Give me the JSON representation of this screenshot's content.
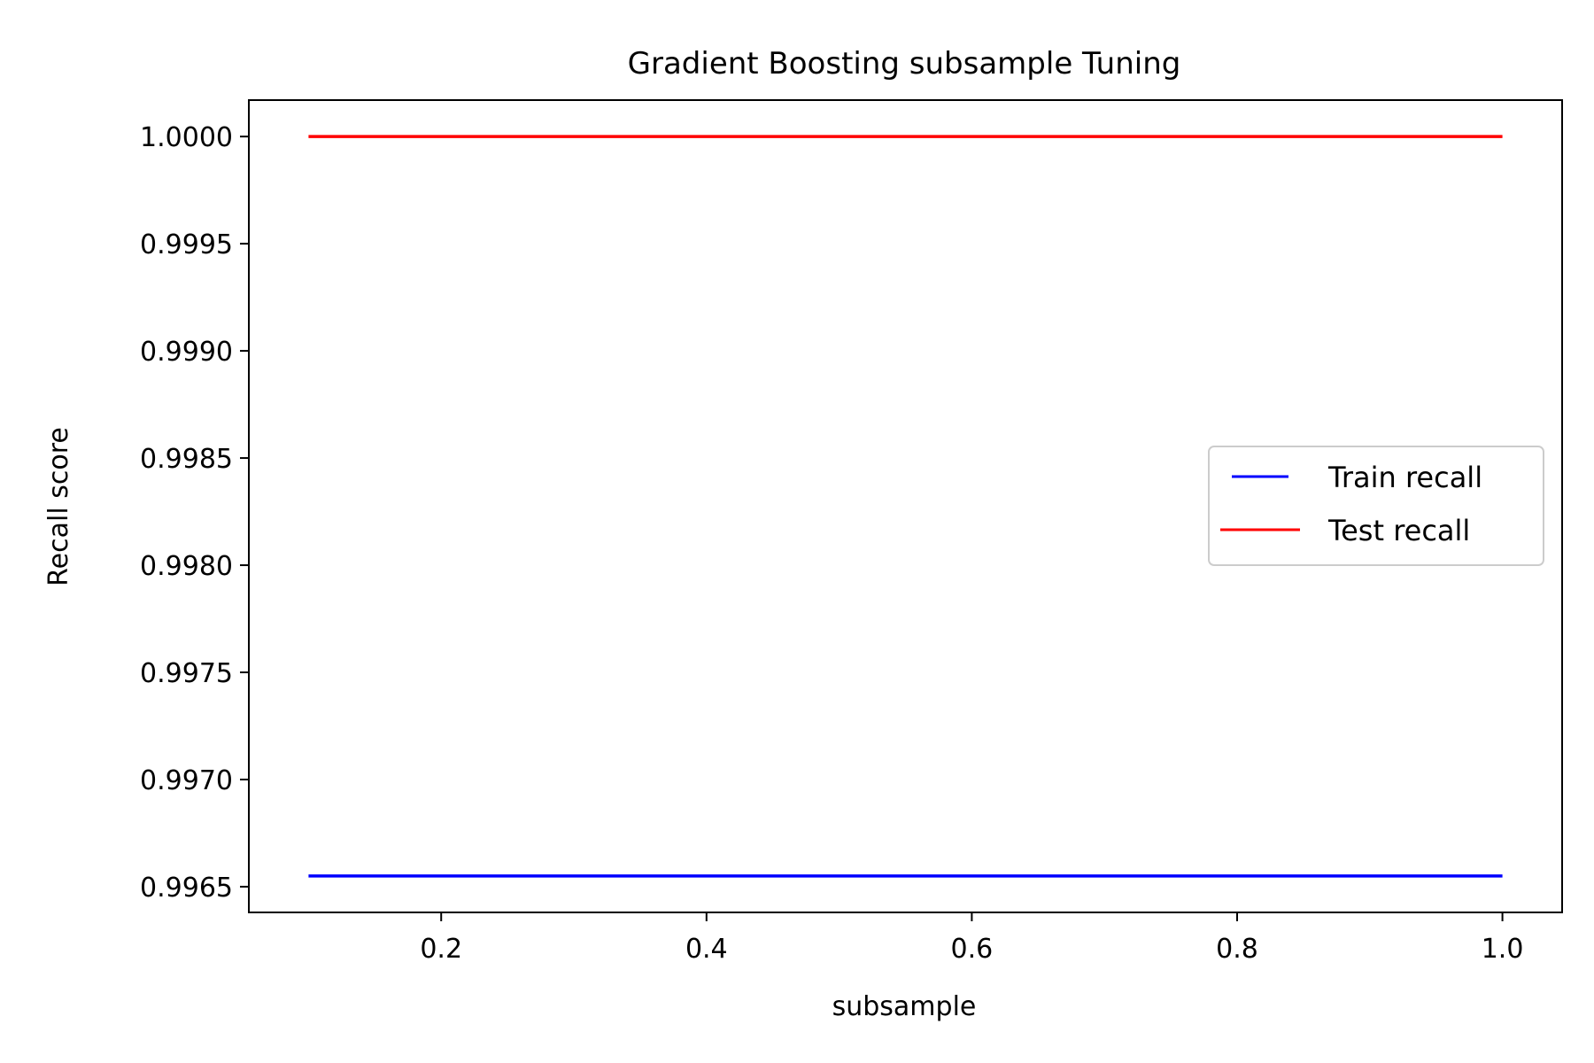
{
  "chart_data": {
    "type": "line",
    "title": "Gradient Boosting subsample Tuning",
    "xlabel": "subsample",
    "ylabel": "Recall score",
    "xlim": [
      0.055,
      1.045
    ],
    "ylim": [
      0.99638,
      1.00017
    ],
    "xticks": [
      0.2,
      0.4,
      0.6,
      0.8,
      1.0
    ],
    "xtick_labels": [
      "0.2",
      "0.4",
      "0.6",
      "0.8",
      "1.0"
    ],
    "yticks": [
      0.9965,
      0.997,
      0.9975,
      0.998,
      0.9985,
      0.999,
      0.9995,
      1.0
    ],
    "ytick_labels": [
      "0.9965",
      "0.9970",
      "0.9975",
      "0.9980",
      "0.9985",
      "0.9990",
      "0.9995",
      "1.0000"
    ],
    "grid": false,
    "legend_position": "center-right",
    "x": [
      0.1,
      0.2,
      0.3,
      0.4,
      0.5,
      0.6,
      0.7,
      0.8,
      0.9,
      1.0
    ],
    "series": [
      {
        "name": "Train recall",
        "color": "#0000ff",
        "values": [
          0.99655,
          0.99655,
          0.99655,
          0.99655,
          0.99655,
          0.99655,
          0.99655,
          0.99655,
          0.99655,
          0.99655
        ]
      },
      {
        "name": "Test recall",
        "color": "#ff0000",
        "values": [
          1.0,
          1.0,
          1.0,
          1.0,
          1.0,
          1.0,
          1.0,
          1.0,
          1.0,
          1.0
        ]
      }
    ]
  }
}
